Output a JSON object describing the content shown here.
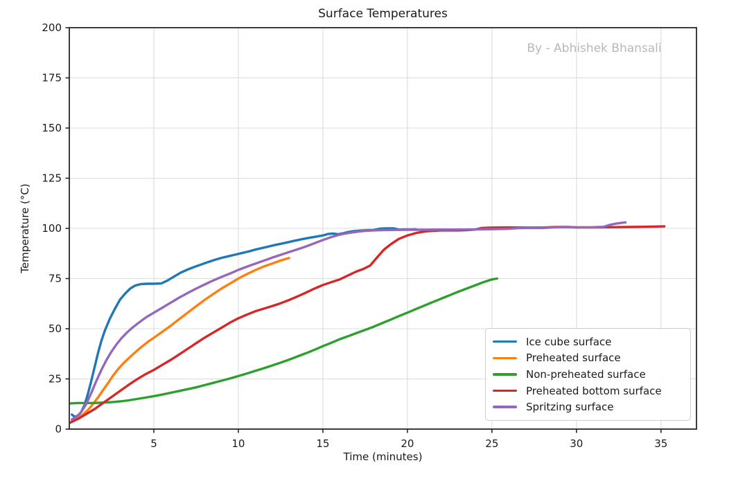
{
  "chart_data": {
    "type": "line",
    "title": "Surface Temperatures",
    "watermark": "By - Abhishek Bhansali",
    "xlabel": "Time (minutes)",
    "ylabel": "Temperature (°C)",
    "xlim": [
      0,
      37.1
    ],
    "ylim": [
      0,
      200
    ],
    "x_ticks": [
      5,
      10,
      15,
      20,
      25,
      30,
      35
    ],
    "y_ticks": [
      0,
      25,
      50,
      75,
      100,
      125,
      150,
      175,
      200
    ],
    "grid": true,
    "grid_color": "#dcdcdc",
    "spine_color": "#262626",
    "legend_position": "lower right",
    "series": [
      {
        "name": "Ice cube surface",
        "color": "#1f77b4",
        "points": [
          [
            0.15,
            7.2
          ],
          [
            0.3,
            6.2
          ],
          [
            0.5,
            6.6
          ],
          [
            0.7,
            8.5
          ],
          [
            0.9,
            12
          ],
          [
            1.1,
            17.5
          ],
          [
            1.3,
            24
          ],
          [
            1.5,
            31
          ],
          [
            1.7,
            38
          ],
          [
            1.9,
            44
          ],
          [
            2.1,
            49
          ],
          [
            2.4,
            55
          ],
          [
            2.7,
            60
          ],
          [
            3.0,
            64.5
          ],
          [
            3.3,
            67.5
          ],
          [
            3.6,
            70
          ],
          [
            3.9,
            71.5
          ],
          [
            4.2,
            72.2
          ],
          [
            4.6,
            72.4
          ],
          [
            5.0,
            72.4
          ],
          [
            5.45,
            72.6
          ],
          [
            5.8,
            74
          ],
          [
            6.2,
            76
          ],
          [
            6.6,
            78
          ],
          [
            7.0,
            79.5
          ],
          [
            7.4,
            80.8
          ],
          [
            7.8,
            82
          ],
          [
            8.2,
            83.2
          ],
          [
            8.6,
            84.3
          ],
          [
            9.0,
            85.3
          ],
          [
            9.4,
            86.1
          ],
          [
            9.8,
            86.9
          ],
          [
            10.2,
            87.7
          ],
          [
            10.6,
            88.5
          ],
          [
            11.0,
            89.4
          ],
          [
            11.4,
            90.2
          ],
          [
            11.8,
            91
          ],
          [
            12.2,
            91.8
          ],
          [
            12.6,
            92.5
          ],
          [
            13.0,
            93.2
          ],
          [
            13.4,
            94
          ],
          [
            13.8,
            94.7
          ],
          [
            14.2,
            95.3
          ],
          [
            14.6,
            95.9
          ],
          [
            15.0,
            96.5
          ],
          [
            15.3,
            97.2
          ],
          [
            15.6,
            97.4
          ],
          [
            15.9,
            97.1
          ],
          [
            16.2,
            97.6
          ],
          [
            16.5,
            98.2
          ],
          [
            16.8,
            98.6
          ],
          [
            17.2,
            98.9
          ],
          [
            17.6,
            99.1
          ],
          [
            18.0,
            99.2
          ],
          [
            18.4,
            99.9
          ],
          [
            18.8,
            100
          ],
          [
            19.2,
            100
          ],
          [
            19.5,
            99.4
          ],
          [
            19.8,
            99.5
          ],
          [
            20.2,
            99.5
          ],
          [
            20.5,
            99.6
          ]
        ]
      },
      {
        "name": "Preheated surface",
        "color": "#ff7f0e",
        "points": [
          [
            0.2,
            4.3
          ],
          [
            0.5,
            5.5
          ],
          [
            0.8,
            7.2
          ],
          [
            1.1,
            9.5
          ],
          [
            1.4,
            12.5
          ],
          [
            1.7,
            15.8
          ],
          [
            2.0,
            19.5
          ],
          [
            2.3,
            23
          ],
          [
            2.6,
            26.8
          ],
          [
            2.9,
            30
          ],
          [
            3.2,
            32.8
          ],
          [
            3.5,
            35.2
          ],
          [
            3.8,
            37.5
          ],
          [
            4.1,
            39.8
          ],
          [
            4.4,
            41.8
          ],
          [
            4.7,
            43.8
          ],
          [
            5.0,
            45.5
          ],
          [
            5.5,
            48.5
          ],
          [
            6.0,
            51.5
          ],
          [
            6.5,
            54.8
          ],
          [
            7.0,
            58
          ],
          [
            7.5,
            61.2
          ],
          [
            8.0,
            64.3
          ],
          [
            8.5,
            67.2
          ],
          [
            9.0,
            70
          ],
          [
            9.5,
            72.5
          ],
          [
            10.0,
            75
          ],
          [
            10.5,
            77.2
          ],
          [
            11.0,
            79.2
          ],
          [
            11.5,
            81
          ],
          [
            12.0,
            82.5
          ],
          [
            12.5,
            84
          ],
          [
            13.0,
            85.2
          ]
        ]
      },
      {
        "name": "Non-preheated surface",
        "color": "#2ca02c",
        "points": [
          [
            0.05,
            12.8
          ],
          [
            0.5,
            13
          ],
          [
            1.0,
            13
          ],
          [
            1.5,
            13
          ],
          [
            2.0,
            13.2
          ],
          [
            2.5,
            13.4
          ],
          [
            3.0,
            13.8
          ],
          [
            3.5,
            14.3
          ],
          [
            4.0,
            15
          ],
          [
            4.5,
            15.7
          ],
          [
            5.0,
            16.4
          ],
          [
            5.5,
            17.2
          ],
          [
            6.0,
            18.1
          ],
          [
            6.5,
            19
          ],
          [
            7.0,
            19.9
          ],
          [
            7.5,
            20.8
          ],
          [
            8.0,
            21.9
          ],
          [
            8.5,
            23
          ],
          [
            9.0,
            24.1
          ],
          [
            9.5,
            25.2
          ],
          [
            10.0,
            26.4
          ],
          [
            10.5,
            27.7
          ],
          [
            11.0,
            29
          ],
          [
            11.5,
            30.3
          ],
          [
            12.0,
            31.7
          ],
          [
            12.5,
            33.1
          ],
          [
            13.0,
            34.6
          ],
          [
            13.5,
            36.2
          ],
          [
            14.0,
            37.8
          ],
          [
            14.5,
            39.5
          ],
          [
            15.0,
            41.3
          ],
          [
            15.5,
            43
          ],
          [
            16.0,
            44.8
          ],
          [
            16.5,
            46.3
          ],
          [
            17.0,
            47.9
          ],
          [
            17.5,
            49.4
          ],
          [
            18.0,
            51
          ],
          [
            18.5,
            52.8
          ],
          [
            19.0,
            54.5
          ],
          [
            19.5,
            56.3
          ],
          [
            20.0,
            58
          ],
          [
            20.5,
            59.8
          ],
          [
            21.0,
            61.5
          ],
          [
            21.5,
            63.3
          ],
          [
            22.0,
            65
          ],
          [
            22.5,
            66.7
          ],
          [
            23.0,
            68.4
          ],
          [
            23.5,
            70
          ],
          [
            24.0,
            71.6
          ],
          [
            24.5,
            73.2
          ],
          [
            25.0,
            74.6
          ],
          [
            25.3,
            75
          ]
        ]
      },
      {
        "name": "Preheated bottom surface",
        "color": "#d62728",
        "points": [
          [
            0.05,
            3.2
          ],
          [
            0.5,
            5
          ],
          [
            1.0,
            7.5
          ],
          [
            1.5,
            10
          ],
          [
            2.0,
            13
          ],
          [
            2.5,
            16
          ],
          [
            3.0,
            19
          ],
          [
            3.5,
            22
          ],
          [
            4.0,
            24.8
          ],
          [
            4.5,
            27.3
          ],
          [
            5.0,
            29.5
          ],
          [
            5.5,
            32
          ],
          [
            6.0,
            34.5
          ],
          [
            6.5,
            37.2
          ],
          [
            7.0,
            40
          ],
          [
            7.5,
            42.8
          ],
          [
            8.0,
            45.5
          ],
          [
            8.5,
            48
          ],
          [
            9.0,
            50.5
          ],
          [
            9.5,
            53
          ],
          [
            10.0,
            55.2
          ],
          [
            10.5,
            57
          ],
          [
            11.0,
            58.7
          ],
          [
            11.5,
            60
          ],
          [
            12.0,
            61.3
          ],
          [
            12.5,
            62.7
          ],
          [
            13.0,
            64.3
          ],
          [
            13.5,
            66.1
          ],
          [
            14.0,
            68
          ],
          [
            14.5,
            70
          ],
          [
            15.0,
            71.8
          ],
          [
            15.5,
            73.2
          ],
          [
            16.0,
            74.6
          ],
          [
            16.5,
            76.6
          ],
          [
            17.0,
            78.6
          ],
          [
            17.4,
            79.8
          ],
          [
            17.8,
            81.5
          ],
          [
            18.2,
            85.5
          ],
          [
            18.6,
            89.3
          ],
          [
            19.0,
            92
          ],
          [
            19.5,
            94.8
          ],
          [
            20.0,
            96.5
          ],
          [
            20.5,
            97.7
          ],
          [
            21.0,
            98.4
          ],
          [
            21.5,
            98.8
          ],
          [
            22.0,
            99
          ],
          [
            22.5,
            99
          ],
          [
            23.0,
            99
          ],
          [
            23.5,
            99.1
          ],
          [
            24.0,
            99.4
          ],
          [
            24.4,
            100.2
          ],
          [
            25.0,
            100.4
          ],
          [
            26.0,
            100.5
          ],
          [
            27.0,
            100.4
          ],
          [
            28.0,
            100.4
          ],
          [
            28.8,
            100.7
          ],
          [
            29.5,
            100.7
          ],
          [
            30.0,
            100.5
          ],
          [
            31.0,
            100.5
          ],
          [
            32.0,
            100.6
          ],
          [
            33.0,
            100.7
          ],
          [
            34.0,
            100.8
          ],
          [
            35.2,
            101
          ]
        ]
      },
      {
        "name": "Spritzing surface",
        "color": "#9467bd",
        "points": [
          [
            0.15,
            4.8
          ],
          [
            0.4,
            6
          ],
          [
            0.7,
            8.5
          ],
          [
            1.0,
            12.5
          ],
          [
            1.3,
            18
          ],
          [
            1.6,
            24
          ],
          [
            1.9,
            29.5
          ],
          [
            2.2,
            34.5
          ],
          [
            2.5,
            38.7
          ],
          [
            2.8,
            42.3
          ],
          [
            3.1,
            45.4
          ],
          [
            3.4,
            48
          ],
          [
            3.7,
            50.3
          ],
          [
            4.0,
            52.3
          ],
          [
            4.3,
            54.2
          ],
          [
            4.6,
            56
          ],
          [
            5.0,
            58
          ],
          [
            5.5,
            60.5
          ],
          [
            6.0,
            63
          ],
          [
            6.5,
            65.5
          ],
          [
            7.0,
            67.8
          ],
          [
            7.5,
            70
          ],
          [
            8.0,
            72
          ],
          [
            8.5,
            74
          ],
          [
            9.0,
            75.8
          ],
          [
            9.5,
            77.5
          ],
          [
            10.0,
            79.3
          ],
          [
            10.5,
            80.9
          ],
          [
            11.0,
            82.4
          ],
          [
            11.5,
            83.9
          ],
          [
            12.0,
            85.4
          ],
          [
            12.5,
            86.8
          ],
          [
            13.0,
            88.2
          ],
          [
            13.5,
            89.6
          ],
          [
            14.0,
            91
          ],
          [
            14.5,
            92.6
          ],
          [
            15.0,
            94.2
          ],
          [
            15.5,
            95.7
          ],
          [
            16.0,
            96.9
          ],
          [
            16.5,
            97.7
          ],
          [
            17.0,
            98.3
          ],
          [
            17.5,
            98.8
          ],
          [
            18.0,
            99
          ],
          [
            18.5,
            99.1
          ],
          [
            19.0,
            99.2
          ],
          [
            20.0,
            99.3
          ],
          [
            21.0,
            99.3
          ],
          [
            22.0,
            99.4
          ],
          [
            23.0,
            99.4
          ],
          [
            24.0,
            99.5
          ],
          [
            25.0,
            99.6
          ],
          [
            26.0,
            99.8
          ],
          [
            26.5,
            100.1
          ],
          [
            27.0,
            100.2
          ],
          [
            28.0,
            100.2
          ],
          [
            28.8,
            100.6
          ],
          [
            29.5,
            100.7
          ],
          [
            30.0,
            100.5
          ],
          [
            31.0,
            100.6
          ],
          [
            31.6,
            100.8
          ],
          [
            32.0,
            101.8
          ],
          [
            32.4,
            102.5
          ],
          [
            32.9,
            103
          ]
        ]
      }
    ]
  }
}
